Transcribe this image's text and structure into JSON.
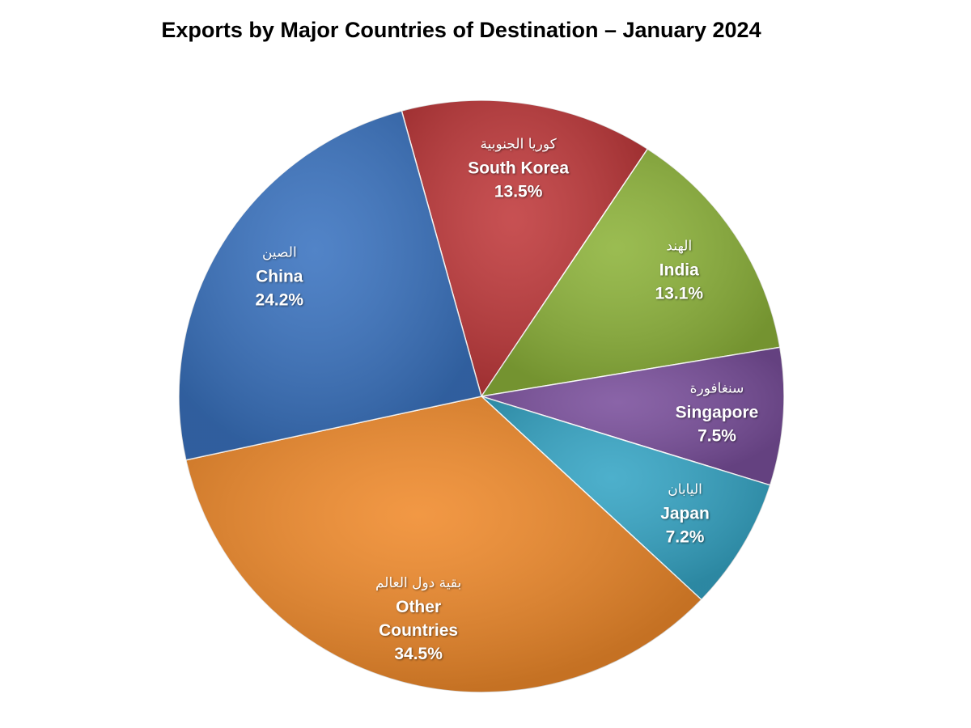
{
  "chart_data": {
    "type": "pie",
    "title": "Exports by Major Countries of Destination – January 2024",
    "categories": [
      "South Korea",
      "India",
      "Singapore",
      "Japan",
      "Other Countries",
      "China"
    ],
    "labels_ar": [
      "كوريا الجنوبية",
      "الهند",
      "سنغافورة",
      "اليابان",
      "بقية دول العالم",
      "الصين"
    ],
    "values": [
      13.5,
      13.1,
      7.5,
      7.2,
      34.5,
      24.2
    ],
    "value_labels": [
      "13.5%",
      "13.1%",
      "7.5%",
      "7.2%",
      "34.5%",
      "24.2%"
    ],
    "colors": [
      "#c0393b",
      "#8db33a",
      "#7a4f9c",
      "#35a5c5",
      "#f08a2b",
      "#3a73c0"
    ]
  }
}
